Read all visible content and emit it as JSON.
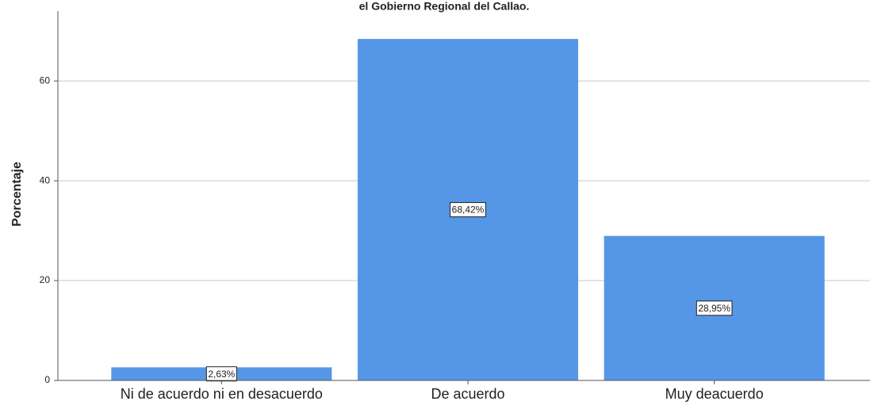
{
  "chart_data": {
    "type": "bar",
    "title": "el Gobierno Regional del Callao.",
    "y_label": "Porcentaje",
    "categories": [
      "Ni de acuerdo ni en desacuerdo",
      "De acuerdo",
      "Muy deacuerdo"
    ],
    "values": [
      2.63,
      68.42,
      28.95
    ],
    "value_labels": [
      "2,63%",
      "68,42%",
      "28,95%"
    ],
    "color": "#5596e6",
    "ylim": [
      0,
      74
    ],
    "yticks": [
      0,
      20,
      40,
      60
    ],
    "grid": true
  }
}
